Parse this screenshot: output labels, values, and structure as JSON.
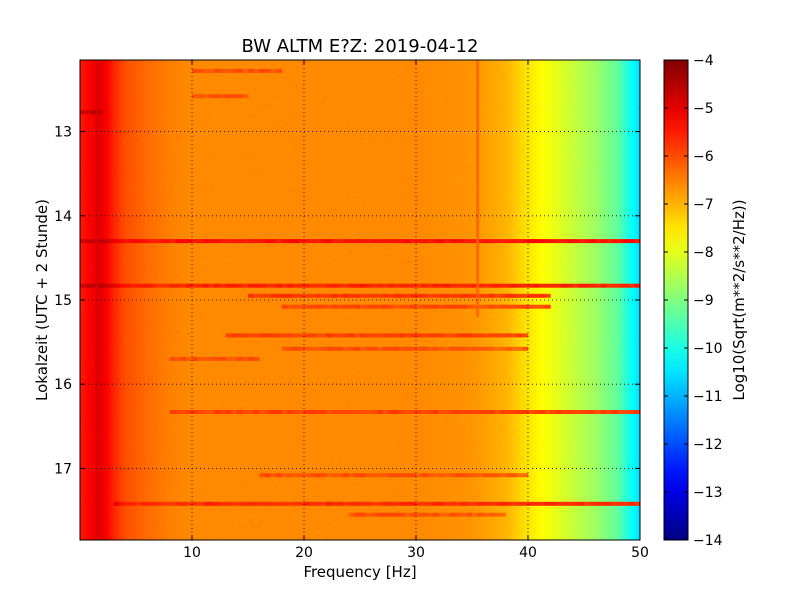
{
  "chart_data": [
    {
      "type": "heatmap",
      "title": "BW ALTM E?Z: 2019-04-12",
      "xlabel": "Frequency [Hz]",
      "ylabel": "Lokalzeit (UTC + 2 Stunde)",
      "xlim": [
        0,
        50
      ],
      "ylim": [
        17.85,
        12.15
      ],
      "y_inverted": true,
      "grid": true,
      "grid_style": "dotted",
      "x_ticks": [
        10,
        20,
        30,
        40,
        50
      ],
      "x_tick_labels": [
        "10",
        "20",
        "30",
        "40",
        "50"
      ],
      "y_ticks": [
        13,
        14,
        15,
        16,
        17
      ],
      "y_tick_labels": [
        "13",
        "14",
        "15",
        "16",
        "17"
      ],
      "colormap": "jet",
      "colorbar": {
        "label": "Log10(Sqrt(m**2/s**2/Hz))",
        "range": [
          -14,
          -4
        ],
        "ticks": [
          -4,
          -5,
          -6,
          -7,
          -8,
          -9,
          -10,
          -11,
          -12,
          -13,
          -14
        ],
        "tick_labels": [
          "−4",
          "−5",
          "−6",
          "−7",
          "−8",
          "−9",
          "−10",
          "−11",
          "−12",
          "−13",
          "−14"
        ]
      },
      "frequency_profile": {
        "frequency_hz": [
          0,
          1,
          2,
          3,
          4,
          6,
          8,
          10,
          20,
          30,
          35,
          38,
          40,
          42,
          44,
          46,
          48,
          49,
          50
        ],
        "level": [
          -5.5,
          -5.2,
          -5.0,
          -5.6,
          -6.0,
          -6.3,
          -6.5,
          -6.6,
          -6.6,
          -6.6,
          -6.7,
          -7.0,
          -7.5,
          -7.9,
          -8.3,
          -8.7,
          -9.3,
          -10.0,
          -10.6
        ]
      },
      "horizontal_bands": [
        {
          "time": 12.28,
          "f_start": 10,
          "f_end": 18,
          "level": -6.1
        },
        {
          "time": 12.58,
          "f_start": 10,
          "f_end": 15,
          "level": -6.2
        },
        {
          "time": 12.77,
          "f_start": 0,
          "f_end": 2,
          "level": -4.8
        },
        {
          "time": 14.3,
          "f_start": 0,
          "f_end": 50,
          "level": -5.4
        },
        {
          "time": 14.83,
          "f_start": 0,
          "f_end": 50,
          "level": -5.6
        },
        {
          "time": 14.95,
          "f_start": 15,
          "f_end": 42,
          "level": -5.8
        },
        {
          "time": 15.08,
          "f_start": 18,
          "f_end": 42,
          "level": -6.0
        },
        {
          "time": 15.42,
          "f_start": 13,
          "f_end": 40,
          "level": -5.9
        },
        {
          "time": 15.58,
          "f_start": 18,
          "f_end": 40,
          "level": -6.2
        },
        {
          "time": 15.7,
          "f_start": 8,
          "f_end": 16,
          "level": -6.1
        },
        {
          "time": 16.33,
          "f_start": 8,
          "f_end": 50,
          "level": -5.9
        },
        {
          "time": 17.08,
          "f_start": 16,
          "f_end": 40,
          "level": -6.2
        },
        {
          "time": 17.42,
          "f_start": 3,
          "f_end": 50,
          "level": -5.7
        },
        {
          "time": 17.55,
          "f_start": 24,
          "f_end": 38,
          "level": -6.2
        }
      ],
      "vertical_features": [
        {
          "frequency": 1.5,
          "level": -4.9
        },
        {
          "frequency": 35.5,
          "t_start": 12.15,
          "t_end": 15.2,
          "level": -6.2
        }
      ]
    }
  ]
}
